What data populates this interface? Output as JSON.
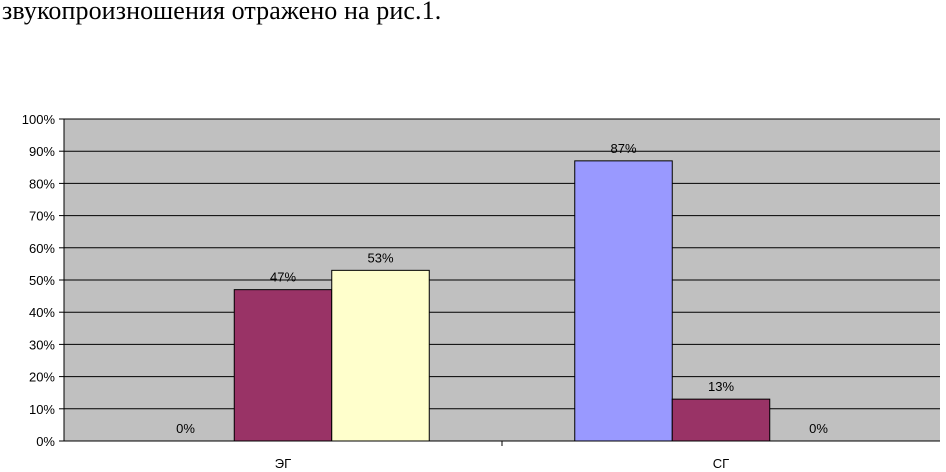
{
  "text": {
    "line": "звукопроизношения отражено на рис.1."
  },
  "colors": {
    "plot_background": "#c0c0c0",
    "gridline": "#000000",
    "series_1": "#9999ff",
    "series_2": "#993366",
    "series_3": "#ffffcc"
  },
  "chart_data": {
    "type": "bar",
    "categories": [
      "ЭГ",
      "СГ"
    ],
    "series": [
      {
        "values": [
          0,
          87
        ],
        "data_labels": [
          "0%",
          "87%"
        ]
      },
      {
        "values": [
          47,
          13
        ],
        "data_labels": [
          "47%",
          "13%"
        ]
      },
      {
        "values": [
          53,
          0
        ],
        "data_labels": [
          "53%",
          "0%"
        ]
      }
    ],
    "ylim": [
      0,
      100
    ],
    "yticks": [
      0,
      10,
      20,
      30,
      40,
      50,
      60,
      70,
      80,
      90,
      100
    ],
    "ytick_labels": [
      "0%",
      "10%",
      "20%",
      "30%",
      "40%",
      "50%",
      "60%",
      "70%",
      "80%",
      "90%",
      "100%"
    ],
    "grid": true,
    "legend": "none"
  }
}
